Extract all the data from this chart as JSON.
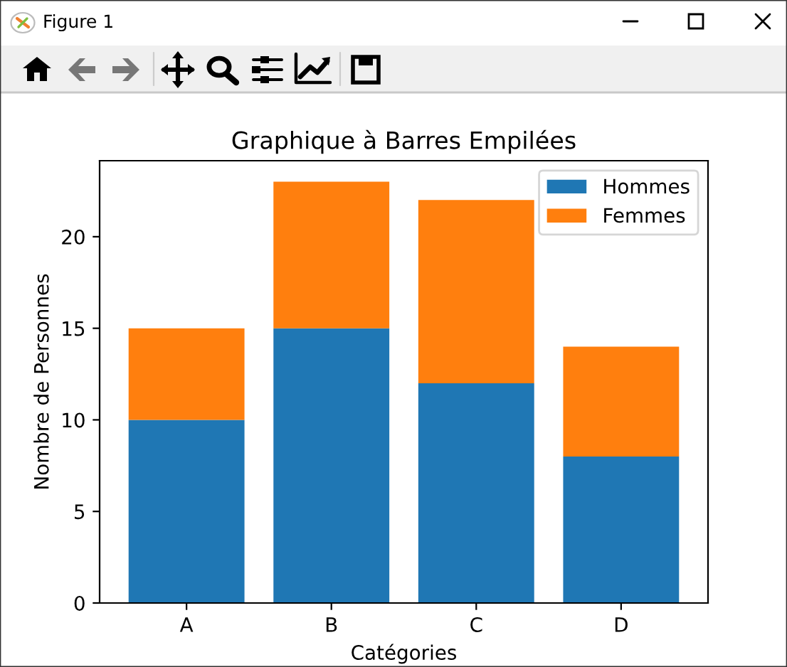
{
  "chart_data": {
    "type": "bar",
    "title": "Graphique à Barres Empilées",
    "xlabel": "Catégories",
    "ylabel": "Nombre de Personnes",
    "categories": [
      "A",
      "B",
      "C",
      "D"
    ],
    "series": [
      {
        "name": "Hommes",
        "color": "#1f77b4",
        "values": [
          10,
          15,
          12,
          8
        ]
      },
      {
        "name": "Femmes",
        "color": "#ff7f0e",
        "values": [
          5,
          8,
          10,
          6
        ]
      }
    ],
    "stacked": true,
    "ylim": [
      0,
      24.15
    ],
    "yticks": [
      0,
      5,
      10,
      15,
      20
    ],
    "grid": false,
    "legend": "top right",
    "annotations": [
      "Figure 1"
    ]
  }
}
